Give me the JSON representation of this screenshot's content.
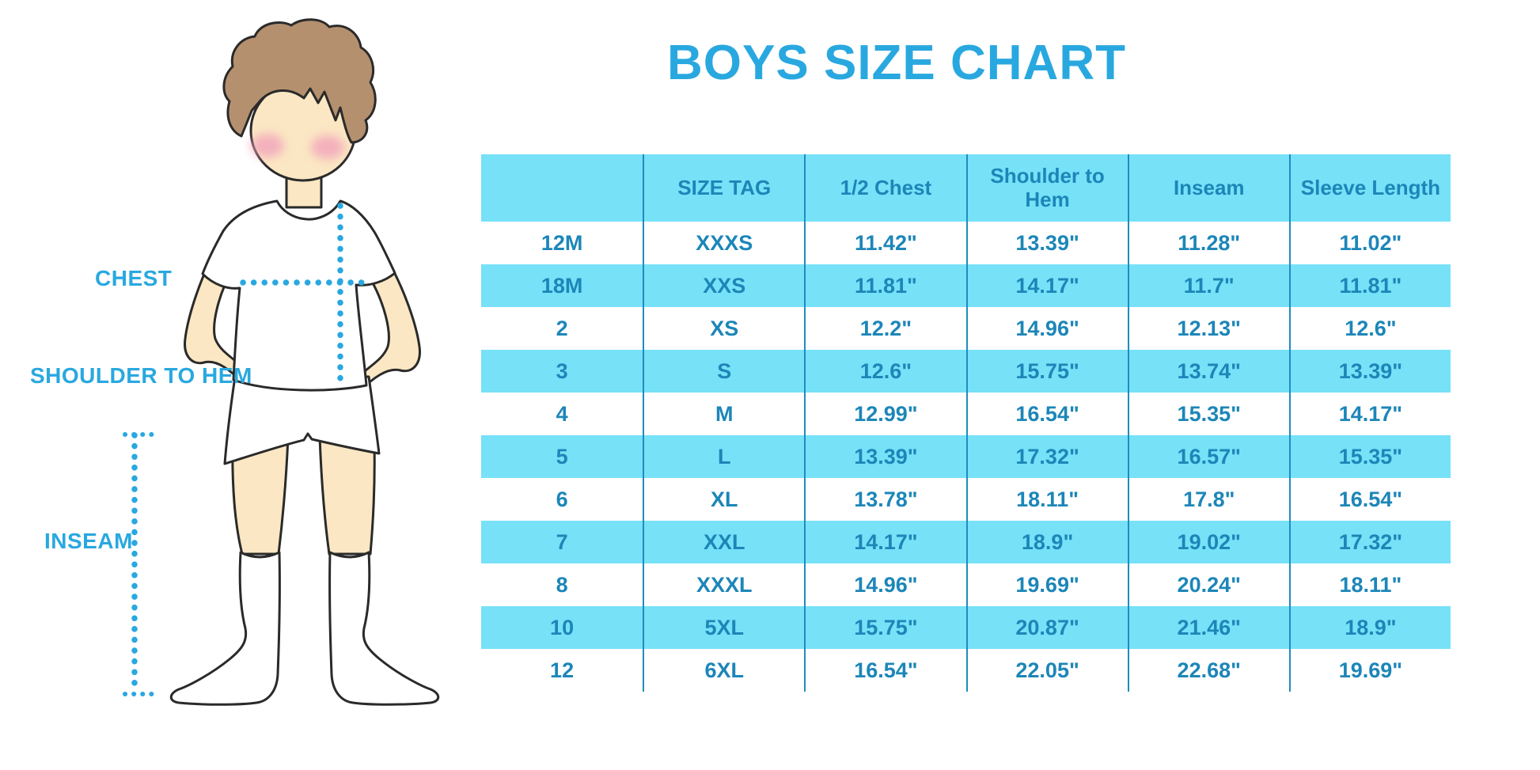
{
  "title": "BOYS SIZE CHART",
  "figure": {
    "labels": {
      "chest": "CHEST",
      "shoulder_to_hem": "SHOULDER TO HEM",
      "inseam": "INSEAM"
    }
  },
  "chart_data": {
    "type": "table",
    "title": "BOYS SIZE CHART",
    "columns": [
      "",
      "SIZE TAG",
      "1/2 Chest",
      "Shoulder to Hem",
      "Inseam",
      "Sleeve Length"
    ],
    "rows": [
      [
        "12M",
        "XXXS",
        "11.42\"",
        "13.39\"",
        "11.28\"",
        "11.02\""
      ],
      [
        "18M",
        "XXS",
        "11.81\"",
        "14.17\"",
        "11.7\"",
        "11.81\""
      ],
      [
        "2",
        "XS",
        "12.2\"",
        "14.96\"",
        "12.13\"",
        "12.6\""
      ],
      [
        "3",
        "S",
        "12.6\"",
        "15.75\"",
        "13.74\"",
        "13.39\""
      ],
      [
        "4",
        "M",
        "12.99\"",
        "16.54\"",
        "15.35\"",
        "14.17\""
      ],
      [
        "5",
        "L",
        "13.39\"",
        "17.32\"",
        "16.57\"",
        "15.35\""
      ],
      [
        "6",
        "XL",
        "13.78\"",
        "18.11\"",
        "17.8\"",
        "16.54\""
      ],
      [
        "7",
        "XXL",
        "14.17\"",
        "18.9\"",
        "19.02\"",
        "17.32\""
      ],
      [
        "8",
        "XXXL",
        "14.96\"",
        "19.69\"",
        "20.24\"",
        "18.11\""
      ],
      [
        "10",
        "5XL",
        "15.75\"",
        "20.87\"",
        "21.46\"",
        "18.9\""
      ],
      [
        "12",
        "6XL",
        "16.54\"",
        "22.05\"",
        "22.68\"",
        "19.69\""
      ]
    ]
  },
  "colors": {
    "accent": "#29A8E0",
    "table_text": "#1C86B8",
    "stripe": "#77E1F8",
    "divider": "#1F8CBF",
    "hair": "#B5906F",
    "skin": "#FBE7C3",
    "outline": "#2A2A2A",
    "blush": "#F2A3BB"
  }
}
